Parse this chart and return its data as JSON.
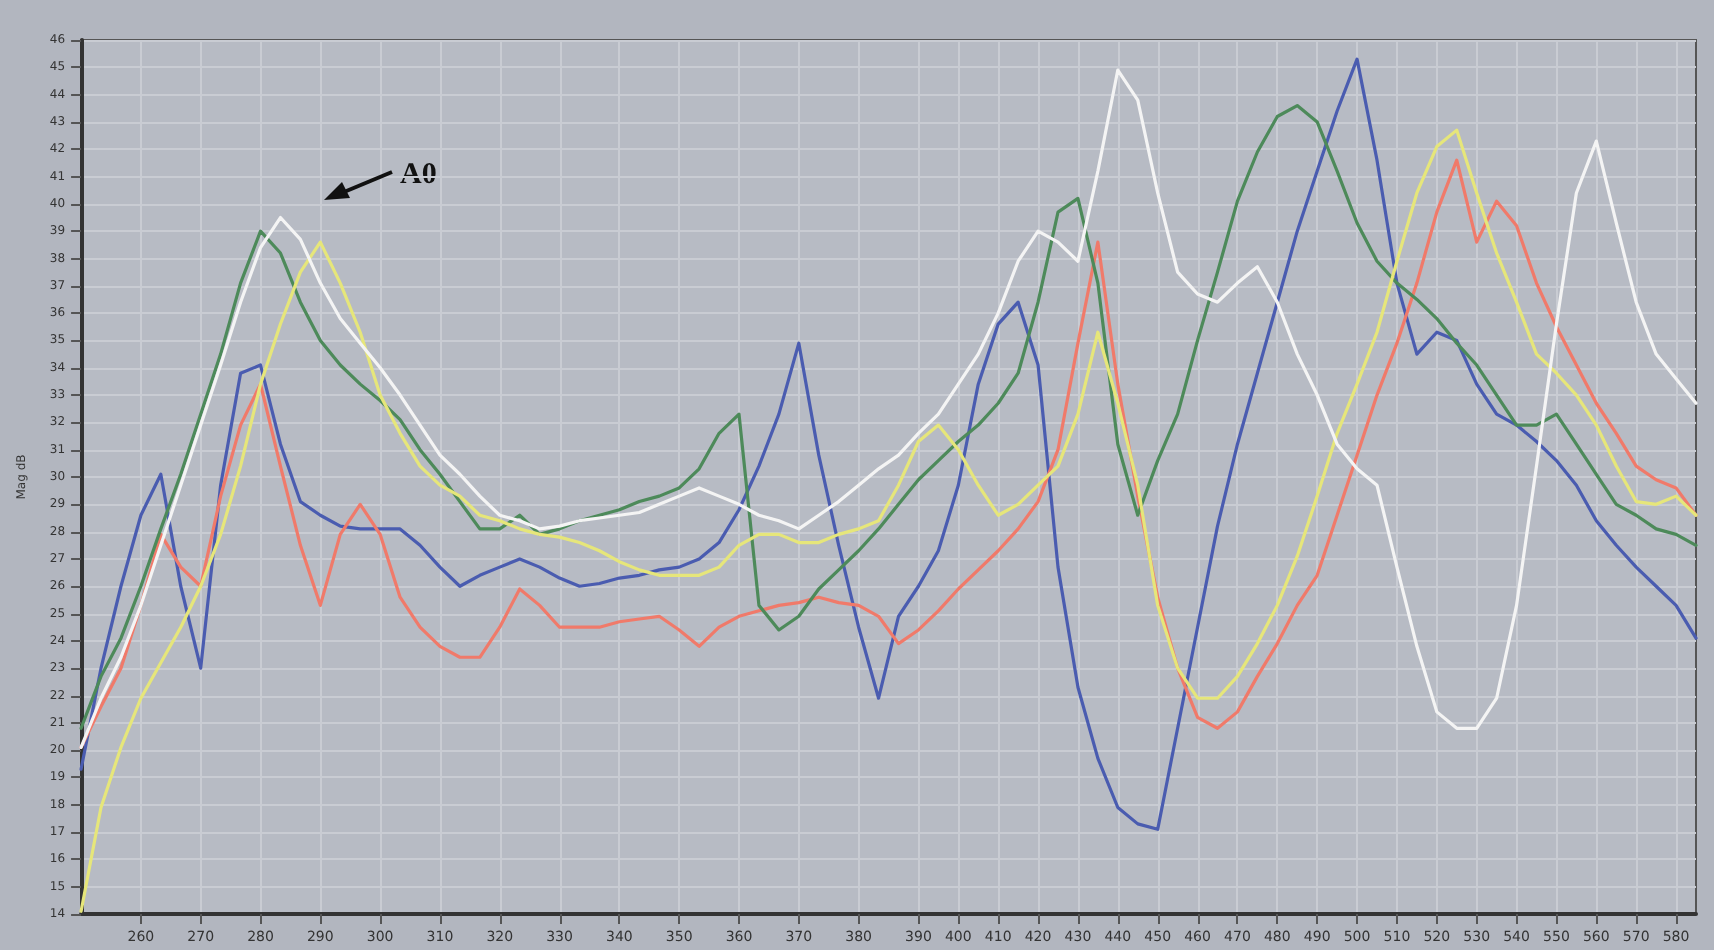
{
  "chart_data": {
    "type": "line",
    "ylabel": "Mag dB",
    "annotations": [
      "A0"
    ],
    "categories": [
      null,
      null,
      null,
      "260",
      null,
      null,
      "270",
      null,
      null,
      "280",
      null,
      null,
      "290",
      null,
      null,
      "300",
      null,
      null,
      "310",
      null,
      null,
      "320",
      null,
      null,
      "330",
      null,
      null,
      "340",
      null,
      null,
      "350",
      null,
      null,
      "360",
      null,
      null,
      "370",
      null,
      null,
      "380",
      null,
      null,
      "390",
      null,
      "400",
      null,
      "410",
      null,
      "420",
      null,
      "430",
      null,
      "440",
      null,
      "450",
      null,
      "460",
      null,
      "470",
      null,
      "480",
      null,
      "490",
      null,
      "500",
      null,
      "510",
      null,
      "520",
      null,
      "530",
      null,
      "540",
      null,
      "550",
      null,
      "560",
      null,
      "570",
      null,
      "580",
      null
    ],
    "series": [
      {
        "color": "#4a5cb0",
        "values": [
          19.3,
          23.0,
          26.0,
          28.6,
          30.1,
          26.0,
          23.0,
          29.7,
          33.8,
          34.1,
          31.2,
          29.1,
          28.6,
          28.2,
          28.1,
          28.1,
          28.1,
          27.5,
          26.7,
          26.0,
          26.4,
          26.7,
          27.0,
          26.7,
          26.3,
          26.0,
          26.1,
          26.3,
          26.4,
          26.6,
          26.7,
          27.0,
          27.6,
          28.8,
          30.4,
          32.3,
          34.9,
          30.8,
          27.5,
          24.5,
          21.9,
          24.9,
          26.0,
          27.3,
          29.7,
          33.4,
          35.6,
          36.4,
          34.1,
          26.7,
          22.3,
          19.7,
          17.9,
          17.3,
          17.1,
          20.8,
          24.5,
          28.2,
          31.2,
          33.8,
          36.4,
          39.0,
          41.2,
          43.4,
          45.3,
          41.6,
          37.1,
          34.5,
          35.3,
          35.0,
          33.4,
          32.3,
          31.9,
          31.3,
          30.6,
          29.7,
          28.4,
          27.5,
          26.7,
          26.0,
          25.3,
          24.1
        ]
      },
      {
        "color": "#f07a6a",
        "values": [
          20.1,
          21.6,
          23.0,
          25.3,
          27.9,
          26.7,
          26.0,
          29.3,
          31.9,
          33.4,
          30.4,
          27.5,
          25.3,
          27.9,
          29.0,
          27.9,
          25.6,
          24.5,
          23.8,
          23.4,
          23.4,
          24.5,
          25.9,
          25.3,
          24.5,
          24.5,
          24.5,
          24.7,
          24.8,
          24.9,
          24.4,
          23.8,
          24.5,
          24.9,
          25.1,
          25.3,
          25.4,
          25.6,
          25.4,
          25.3,
          24.9,
          23.9,
          24.4,
          25.1,
          25.9,
          26.6,
          27.3,
          28.1,
          29.1,
          31.0,
          34.9,
          38.6,
          33.4,
          29.3,
          25.6,
          23.0,
          21.2,
          20.8,
          21.4,
          22.7,
          23.9,
          25.3,
          26.4,
          28.6,
          30.8,
          33.0,
          34.9,
          37.1,
          39.7,
          41.6,
          38.6,
          40.1,
          39.2,
          37.1,
          35.5,
          34.1,
          32.7,
          31.6,
          30.4,
          29.9,
          29.6,
          28.6
        ]
      },
      {
        "color": "#4d8a5a",
        "values": [
          20.8,
          22.7,
          24.1,
          26.0,
          28.1,
          30.1,
          32.3,
          34.5,
          37.1,
          39.0,
          38.2,
          36.4,
          35.0,
          34.1,
          33.4,
          32.8,
          32.1,
          31.0,
          30.1,
          29.1,
          28.1,
          28.1,
          28.6,
          27.9,
          28.1,
          28.4,
          28.6,
          28.8,
          29.1,
          29.3,
          29.6,
          30.3,
          31.6,
          32.3,
          25.3,
          24.4,
          24.9,
          25.9,
          26.6,
          27.3,
          28.1,
          29.0,
          29.9,
          30.6,
          31.3,
          31.9,
          32.7,
          33.8,
          36.4,
          39.7,
          40.2,
          37.1,
          31.2,
          28.6,
          30.6,
          32.3,
          35.0,
          37.5,
          40.1,
          41.9,
          43.2,
          43.6,
          43.0,
          41.2,
          39.3,
          37.9,
          37.1,
          36.5,
          35.8,
          34.9,
          34.1,
          33.0,
          31.9,
          31.9,
          32.3,
          31.2,
          30.1,
          29.0,
          28.6,
          28.1,
          27.9,
          27.5
        ]
      },
      {
        "color": "#e6e67a",
        "values": [
          14.1,
          17.9,
          20.1,
          21.9,
          23.2,
          24.5,
          26.0,
          27.9,
          30.4,
          33.4,
          35.6,
          37.5,
          38.6,
          37.1,
          35.3,
          33.0,
          31.6,
          30.4,
          29.7,
          29.3,
          28.6,
          28.4,
          28.1,
          27.9,
          27.8,
          27.6,
          27.3,
          26.9,
          26.6,
          26.4,
          26.4,
          26.4,
          26.7,
          27.5,
          27.9,
          27.9,
          27.6,
          27.6,
          27.9,
          28.1,
          28.4,
          29.7,
          31.3,
          31.9,
          31.0,
          29.7,
          28.6,
          29.0,
          29.7,
          30.4,
          32.3,
          35.3,
          32.7,
          29.7,
          25.3,
          23.0,
          21.9,
          21.9,
          22.7,
          23.9,
          25.3,
          27.1,
          29.3,
          31.6,
          33.4,
          35.3,
          37.9,
          40.4,
          42.1,
          42.7,
          40.4,
          38.2,
          36.4,
          34.5,
          33.8,
          33.0,
          31.9,
          30.4,
          29.1,
          29.0,
          29.3,
          28.6
        ]
      },
      {
        "color": "#f4f4f4",
        "values": [
          20.1,
          21.9,
          23.4,
          25.3,
          27.5,
          29.7,
          31.9,
          34.1,
          36.4,
          38.4,
          39.5,
          38.7,
          37.1,
          35.8,
          34.9,
          34.0,
          33.0,
          31.9,
          30.8,
          30.1,
          29.3,
          28.6,
          28.4,
          28.1,
          28.2,
          28.4,
          28.5,
          28.6,
          28.7,
          29.0,
          29.3,
          29.6,
          29.3,
          29.0,
          28.6,
          28.4,
          28.1,
          28.6,
          29.1,
          29.7,
          30.3,
          30.8,
          31.6,
          32.3,
          33.4,
          34.5,
          36.0,
          37.9,
          39.0,
          38.6,
          37.9,
          41.2,
          44.9,
          43.8,
          40.4,
          37.5,
          36.7,
          36.4,
          37.1,
          37.7,
          36.4,
          34.5,
          33.0,
          31.2,
          30.3,
          29.7,
          26.7,
          23.8,
          21.4,
          20.8,
          20.8,
          21.9,
          25.3,
          30.4,
          35.6,
          40.4,
          42.3,
          39.3,
          36.4,
          34.5,
          33.6,
          32.7
        ]
      }
    ],
    "ylim": [
      14,
      46
    ],
    "yticks": [
      14,
      15,
      16,
      17,
      18,
      19,
      20,
      21,
      22,
      23,
      24,
      25,
      26,
      27,
      28,
      29,
      30,
      31,
      32,
      33,
      34,
      35,
      36,
      37,
      38,
      39,
      40,
      41,
      42,
      43,
      44,
      45,
      46
    ],
    "grid": true,
    "marker": "none",
    "line_style": "solid"
  }
}
